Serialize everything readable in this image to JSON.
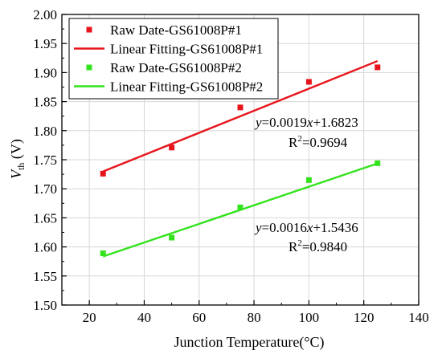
{
  "chart_data": {
    "type": "scatter",
    "xlabel": "Junction Temperature(°C)",
    "ylabel_main": "V",
    "ylabel_sub": "th",
    "ylabel_unit": " (V)",
    "xlim": [
      10,
      140
    ],
    "ylim": [
      1.5,
      2.0
    ],
    "x_ticks": [
      20,
      40,
      60,
      80,
      100,
      120,
      140
    ],
    "x_tick_labels": [
      "20",
      "40",
      "60",
      "80",
      "100",
      "120",
      "140"
    ],
    "y_ticks": [
      1.5,
      1.55,
      1.6,
      1.65,
      1.7,
      1.75,
      1.8,
      1.85,
      1.9,
      1.95,
      2.0
    ],
    "y_tick_labels": [
      "1.50",
      "1.55",
      "1.60",
      "1.65",
      "1.70",
      "1.75",
      "1.80",
      "1.85",
      "1.90",
      "1.95",
      "2.00"
    ],
    "grid": true,
    "legend_position": "top-left",
    "series": [
      {
        "name": "Raw Date-GS61008P#1",
        "kind": "scatter",
        "color": "#e8141b",
        "x": [
          25,
          50,
          75,
          100,
          125
        ],
        "y": [
          1.726,
          1.771,
          1.84,
          1.884,
          1.909
        ]
      },
      {
        "name": "Linear Fitting-GS61008P#1",
        "kind": "line",
        "color": "#e8141b",
        "slope": 0.0019,
        "intercept": 1.6823,
        "x": [
          25,
          125
        ]
      },
      {
        "name": "Raw Date-GS61008P#2",
        "kind": "scatter",
        "color": "#33e31d",
        "x": [
          25,
          50,
          75,
          100,
          125
        ],
        "y": [
          1.589,
          1.616,
          1.668,
          1.715,
          1.744
        ]
      },
      {
        "name": "Linear Fitting-GS61008P#2",
        "kind": "line",
        "color": "#33e31d",
        "slope": 0.0016,
        "intercept": 1.5436,
        "x": [
          25,
          125
        ]
      }
    ],
    "annotations": [
      {
        "eq_y": "y",
        "eq_mid": "=0.0019",
        "eq_x": "x",
        "eq_rest": "+1.6823",
        "r2_base": "R",
        "r2_sup": "2",
        "r2_value": "=0.9694"
      },
      {
        "eq_y": "y",
        "eq_mid": "=0.0016",
        "eq_x": "x",
        "eq_rest": "+1.5436",
        "r2_base": "R",
        "r2_sup": "2",
        "r2_value": "=0.9840"
      }
    ]
  }
}
